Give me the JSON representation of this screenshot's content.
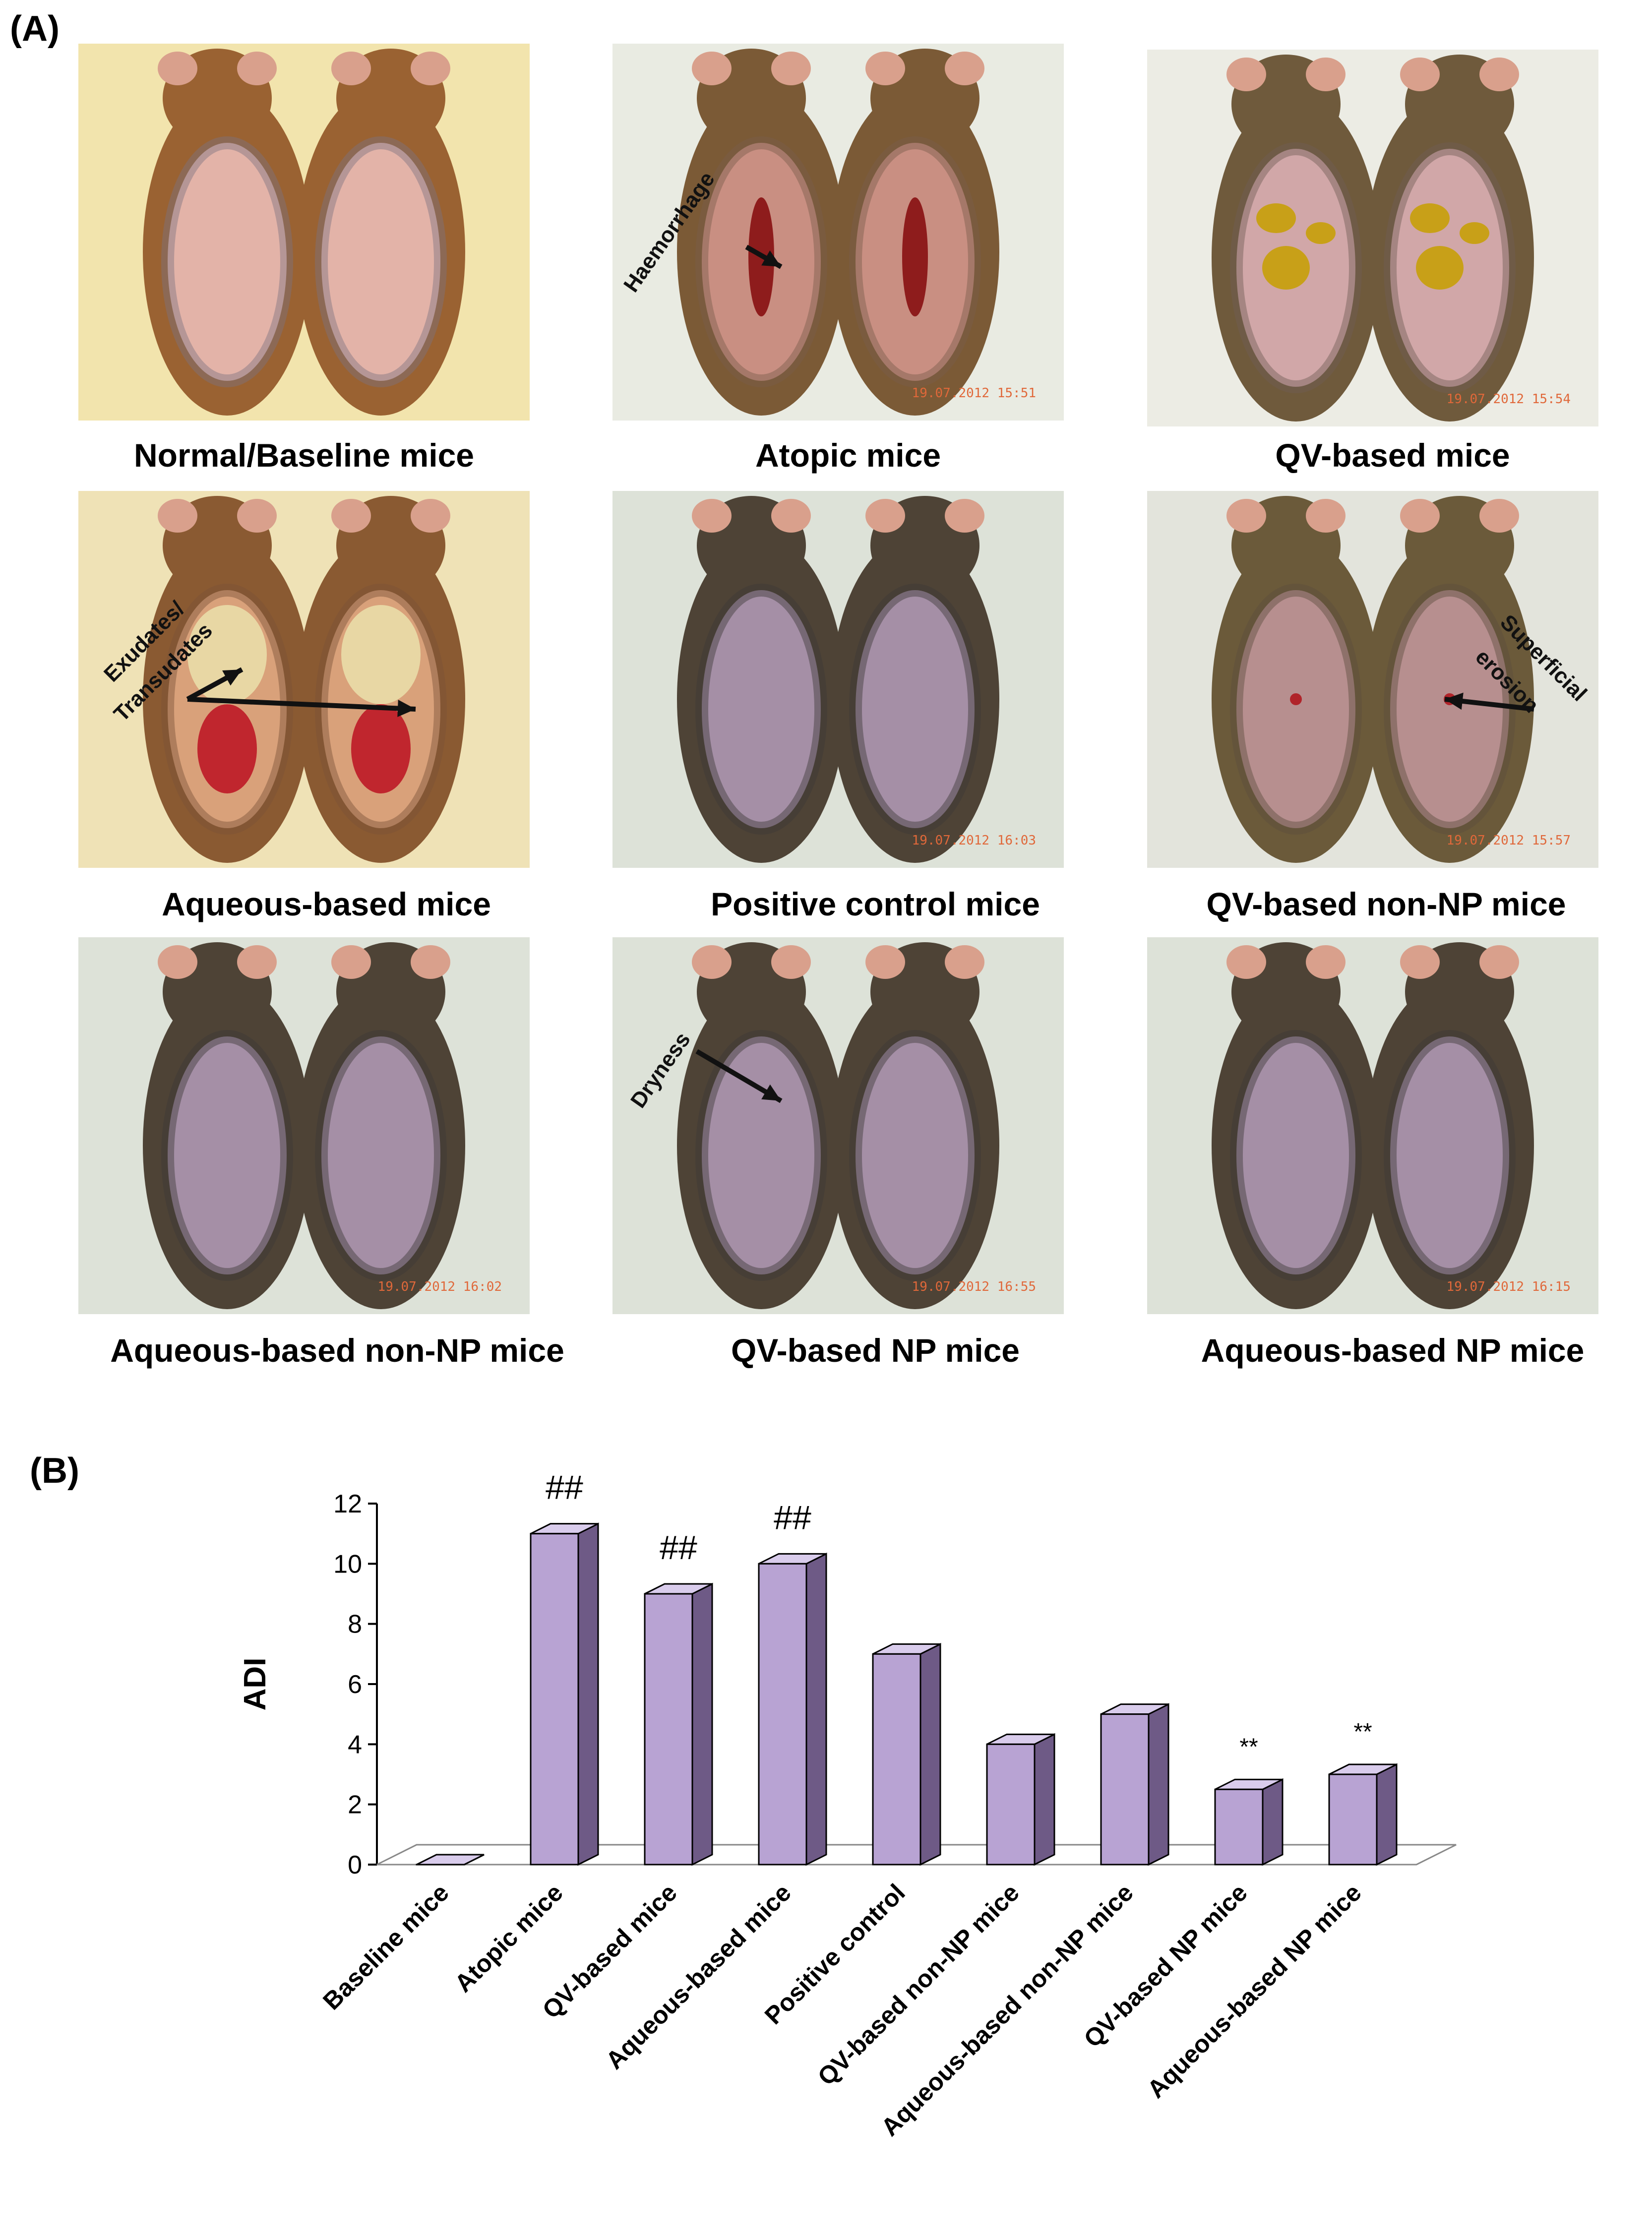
{
  "panel_a": {
    "label": "(A)",
    "photos": [
      {
        "caption": "Normal/Baseline mice",
        "stamp": "",
        "tone": "baseline"
      },
      {
        "caption": "Atopic mice",
        "stamp": "19.07.2012 15:51",
        "tone": "lesion",
        "annotation": "Haemorrhage"
      },
      {
        "caption": "QV-based mice",
        "stamp": "19.07.2012 15:54",
        "tone": "crust"
      },
      {
        "caption": "Aqueous-based mice",
        "stamp": "",
        "tone": "exudate",
        "annotation_lines": [
          "Exudates/",
          "Transudates"
        ]
      },
      {
        "caption": "Positive control mice",
        "stamp": "19.07.2012 16:03",
        "tone": "dark"
      },
      {
        "caption": "QV-based non-NP mice",
        "stamp": "19.07.2012 15:57",
        "tone": "erosion",
        "annotation_lines": [
          "Superficial",
          "erosion"
        ]
      },
      {
        "caption": "Aqueous-based non-NP mice",
        "stamp": "19.07.2012 16:02",
        "tone": "dark"
      },
      {
        "caption": "QV-based NP mice",
        "stamp": "19.07.2012 16:55",
        "tone": "dark",
        "annotation": "Dryness"
      },
      {
        "caption": "Aqueous-based NP mice",
        "stamp": "19.07.2012 16:15",
        "tone": "dark"
      }
    ]
  },
  "panel_b": {
    "label": "(B)"
  },
  "chart_data": {
    "type": "bar",
    "title": "",
    "xlabel": "",
    "ylabel": "ADI",
    "ylim": [
      0,
      12
    ],
    "yticks": [
      "0",
      "2",
      "4",
      "6",
      "8",
      "10",
      "12"
    ],
    "categories": [
      "Baseline mice",
      "Atopic mice",
      "QV-based mice",
      "Aqueous-based  mice",
      "Positive control",
      "QV-based non-NP mice",
      "Aqueous-based  non-NP mice",
      "QV-based NP mice",
      "Aqueous-based  NP mice"
    ],
    "values": [
      0,
      11,
      9,
      10,
      7,
      4,
      5,
      2.5,
      3
    ],
    "annotations": [
      "",
      "##",
      "##",
      "##",
      "",
      "",
      "",
      "**",
      "**"
    ],
    "bar_color": "#b8a3d3",
    "bar_side_color": "#6e5a86",
    "bar_top_color": "#d9ccec"
  }
}
